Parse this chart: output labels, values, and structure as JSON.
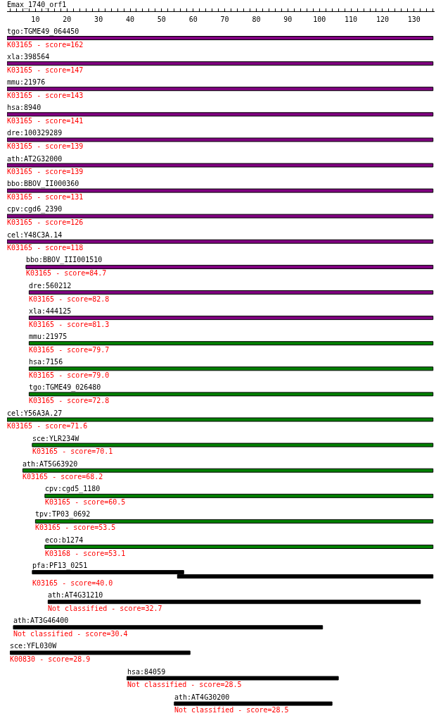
{
  "chart_data": {
    "type": "bar",
    "orientation": "horizontal",
    "title": "Emax_1740_orf1",
    "categories": [
      "tgo:TGME49_064450",
      "xla:398564",
      "mmu:21976",
      "hsa:8940",
      "dre:100329289",
      "ath:AT2G32000",
      "bbo:BBOV_II000360",
      "cpv:cgd6_2390",
      "cel:Y48C3A.14",
      "bbo:BBOV_III001510",
      "dre:560212",
      "xla:444125",
      "mmu:21975",
      "hsa:7156",
      "tgo:TGME49_026480",
      "cel:Y56A3A.27",
      "sce:YLR234W",
      "ath:AT5G63920",
      "cpv:cgd5_1180",
      "tpv:TP03_0692",
      "eco:b1274",
      "pfa:PF13_0251",
      "ath:AT4G31210",
      "ath:AT3G46400",
      "sce:YFL030W",
      "hsa:84059",
      "ath:AT4G30200"
    ],
    "series": [
      {
        "colors": [
          "#800080",
          "#800080",
          "#800080",
          "#800080",
          "#800080",
          "#800080",
          "#800080",
          "#800080",
          "#800080",
          "#800080",
          "#800080",
          "#800080",
          "#008000",
          "#008000",
          "#008000",
          "#008000",
          "#008000",
          "#008000",
          "#008000",
          "#008000",
          "#008000",
          "#000000",
          "#000000",
          "#000000",
          "#000000",
          "#000000",
          "#000000"
        ],
        "base": [
          1,
          1,
          1,
          1,
          1,
          1,
          1,
          1,
          1,
          7,
          8,
          8,
          8,
          8,
          8,
          1,
          9,
          6,
          13,
          10,
          13,
          9,
          14,
          3,
          2,
          39,
          54
        ],
        "values": [
          135,
          135,
          135,
          135,
          135,
          135,
          135,
          135,
          135,
          129,
          128,
          128,
          128,
          128,
          128,
          135,
          127,
          130,
          123,
          126,
          123,
          48,
          118,
          98,
          57,
          67,
          50
        ]
      },
      {
        "color": "#000000",
        "base": [
          null,
          null,
          null,
          null,
          null,
          null,
          null,
          null,
          null,
          null,
          null,
          null,
          null,
          null,
          null,
          null,
          null,
          null,
          null,
          null,
          null,
          55,
          null,
          null,
          null,
          null,
          null
        ],
        "values": [
          null,
          null,
          null,
          null,
          null,
          null,
          null,
          null,
          null,
          null,
          null,
          null,
          null,
          null,
          null,
          null,
          null,
          null,
          null,
          null,
          null,
          81,
          null,
          null,
          null,
          null,
          null
        ]
      }
    ],
    "annotations": [
      "K03165 - score=162",
      "K03165 - score=147",
      "K03165 - score=143",
      "K03165 - score=141",
      "K03165 - score=139",
      "K03165 - score=139",
      "K03165 - score=131",
      "K03165 - score=126",
      "K03165 - score=118",
      "K03165 - score=84.7",
      "K03165 - score=82.8",
      "K03165 - score=81.3",
      "K03165 - score=79.7",
      "K03165 - score=79.0",
      "K03165 - score=72.8",
      "K03165 - score=71.6",
      "K03165 - score=70.1",
      "K03165 - score=68.2",
      "K03165 - score=60.5",
      "K03165 - score=53.5",
      "K03168 - score=53.1",
      "K03165 - score=40.0",
      "Not classified - score=32.7",
      "Not classified - score=30.4",
      "K00830 - score=28.9",
      "Not classified - score=28.5",
      "Not classified - score=28.5"
    ],
    "xlim": [
      1,
      136.5
    ],
    "xticks": [
      {
        "value": 2,
        "label": null
      },
      {
        "value": 4,
        "label": null
      },
      {
        "value": 6,
        "label": null
      },
      {
        "value": 8,
        "label": null
      },
      10,
      {
        "value": 12,
        "label": null
      },
      {
        "value": 14,
        "label": null
      },
      {
        "value": 16,
        "label": null
      },
      {
        "value": 18,
        "label": null
      },
      20,
      {
        "value": 22,
        "label": null
      },
      {
        "value": 24,
        "label": null
      },
      {
        "value": 26,
        "label": null
      },
      {
        "value": 28,
        "label": null
      },
      30,
      {
        "value": 32,
        "label": null
      },
      {
        "value": 34,
        "label": null
      },
      {
        "value": 36,
        "label": null
      },
      {
        "value": 38,
        "label": null
      },
      40,
      {
        "value": 42,
        "label": null
      },
      {
        "value": 44,
        "label": null
      },
      {
        "value": 46,
        "label": null
      },
      {
        "value": 48,
        "label": null
      },
      50,
      {
        "value": 52,
        "label": null
      },
      {
        "value": 54,
        "label": null
      },
      {
        "value": 56,
        "label": null
      },
      {
        "value": 58,
        "label": null
      },
      60,
      {
        "value": 62,
        "label": null
      },
      {
        "value": 64,
        "label": null
      },
      {
        "value": 66,
        "label": null
      },
      {
        "value": 68,
        "label": null
      },
      70,
      {
        "value": 72,
        "label": null
      },
      {
        "value": 74,
        "label": null
      },
      {
        "value": 76,
        "label": null
      },
      {
        "value": 78,
        "label": null
      },
      80,
      {
        "value": 82,
        "label": null
      },
      {
        "value": 84,
        "label": null
      },
      {
        "value": 86,
        "label": null
      },
      {
        "value": 88,
        "label": null
      },
      90,
      {
        "value": 92,
        "label": null
      },
      {
        "value": 94,
        "label": null
      },
      {
        "value": 96,
        "label": null
      },
      {
        "value": 98,
        "label": null
      },
      100,
      {
        "value": 102,
        "label": null
      },
      {
        "value": 104,
        "label": null
      },
      {
        "value": 106,
        "label": null
      },
      {
        "value": 108,
        "label": null
      },
      110,
      {
        "value": 112,
        "label": null
      },
      {
        "value": 114,
        "label": null
      },
      {
        "value": 116,
        "label": null
      },
      {
        "value": 118,
        "label": null
      },
      120,
      {
        "value": 122,
        "label": null
      },
      {
        "value": 124,
        "label": null
      },
      {
        "value": 126,
        "label": null
      },
      {
        "value": 128,
        "label": null
      },
      130,
      {
        "value": 132,
        "label": null
      },
      {
        "value": 134,
        "label": null
      },
      {
        "value": 136,
        "label": null
      }
    ],
    "grid": false
  }
}
